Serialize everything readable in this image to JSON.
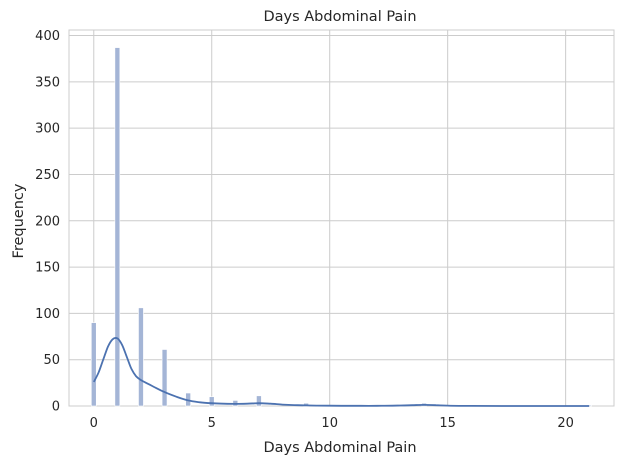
{
  "chart_data": {
    "type": "bar",
    "subtype": "histogram-with-kde",
    "title": "Days Abdominal Pain",
    "xlabel": "Days Abdominal Pain",
    "ylabel": "Frequency",
    "xlim": [
      -1.05,
      22.05
    ],
    "ylim": [
      0,
      406
    ],
    "x_ticks": [
      0,
      5,
      10,
      15,
      20
    ],
    "y_ticks": [
      0,
      50,
      100,
      150,
      200,
      250,
      300,
      350,
      400
    ],
    "grid": true,
    "bin_width": 0.21,
    "bars": [
      {
        "x": 0,
        "value": 90
      },
      {
        "x": 1,
        "value": 387
      },
      {
        "x": 2,
        "value": 106
      },
      {
        "x": 3,
        "value": 61
      },
      {
        "x": 4,
        "value": 14
      },
      {
        "x": 5,
        "value": 10
      },
      {
        "x": 6,
        "value": 6
      },
      {
        "x": 7,
        "value": 11
      },
      {
        "x": 9,
        "value": 3
      },
      {
        "x": 14,
        "value": 3
      },
      {
        "x": 21,
        "value": 1
      }
    ],
    "kde": {
      "x": [
        0,
        0.2,
        0.4,
        0.6,
        0.8,
        1.0,
        1.2,
        1.4,
        1.6,
        1.8,
        2.0,
        2.3,
        2.6,
        3.0,
        3.5,
        4.0,
        4.5,
        5.0,
        5.5,
        6.0,
        6.5,
        7.0,
        7.5,
        8.0,
        8.5,
        9.0,
        10,
        11,
        12,
        13,
        13.5,
        14,
        14.5,
        15,
        16,
        18,
        20,
        21
      ],
      "y": [
        26,
        36,
        50,
        64,
        72,
        73,
        66,
        53,
        40,
        32,
        28,
        24,
        20,
        15,
        10,
        6,
        4,
        3,
        2.5,
        2.3,
        2.5,
        3,
        2.5,
        1.5,
        1,
        0.6,
        0.3,
        0.2,
        0.2,
        0.5,
        0.9,
        1.2,
        0.9,
        0.4,
        0.1,
        0,
        0,
        0
      ]
    },
    "colors": {
      "bar": "#a4b5d6",
      "kde": "#4c72b0",
      "grid": "#cccccc",
      "text": "#262626"
    }
  }
}
